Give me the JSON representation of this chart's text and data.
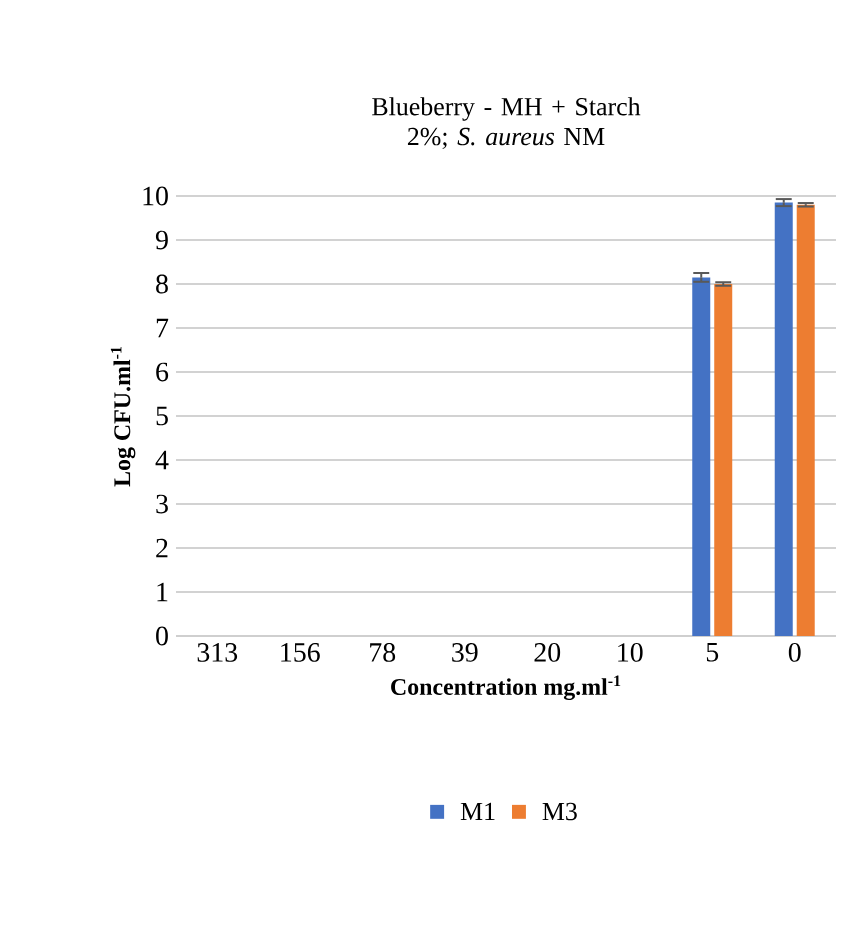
{
  "chart_data": {
    "type": "bar",
    "title": "Blueberry - MH + Starch 2%; *S. aureus* NM",
    "xlabel": "Concentration mg.ml$^{-1}$",
    "ylabel": "Log CFU.ml$^{-1}$",
    "categories": [
      "313",
      "156",
      "78",
      "39",
      "20",
      "10",
      "5",
      "0"
    ],
    "series": [
      {
        "name": "M1",
        "color": "#4472c4",
        "values": [
          0,
          0,
          0,
          0,
          0,
          0,
          8.15,
          9.85
        ],
        "errors": [
          null,
          null,
          null,
          null,
          null,
          null,
          0.1,
          0.08
        ]
      },
      {
        "name": "M3",
        "color": "#ed7d31",
        "values": [
          0,
          0,
          0,
          0,
          0,
          0,
          8.0,
          9.8
        ],
        "errors": [
          null,
          null,
          null,
          null,
          null,
          null,
          0.04,
          0.04
        ]
      }
    ],
    "ylim": [
      0,
      10
    ],
    "yticks": [
      0,
      1,
      2,
      3,
      4,
      5,
      6,
      7,
      8,
      9,
      10
    ],
    "grid": "y",
    "legend": "bottom"
  }
}
